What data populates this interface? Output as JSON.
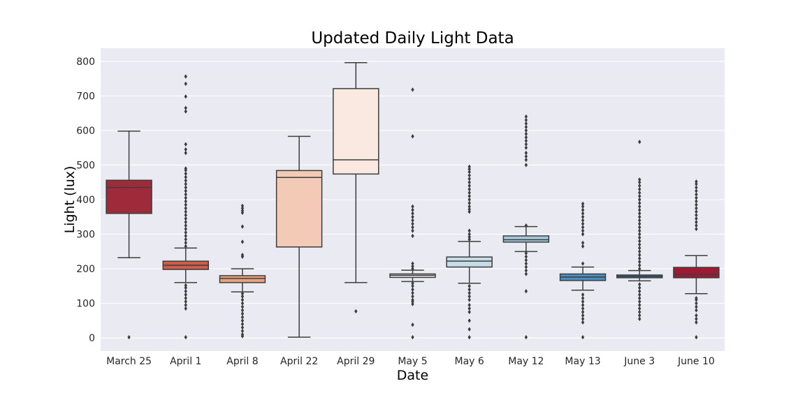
{
  "chart_data": {
    "type": "box",
    "title": "Updated Daily Light Data",
    "xlabel": "Date",
    "ylabel": "Light (lux)",
    "ylim": [
      -38,
      838
    ],
    "yticks": [
      0,
      100,
      200,
      300,
      400,
      500,
      600,
      700,
      800
    ],
    "grid": true,
    "background": "#eaeaf2",
    "line_color": "#3d3d3d",
    "categories": [
      "March 25",
      "April 1",
      "April 8",
      "April 22",
      "April 29",
      "May 5",
      "May 6",
      "May 12",
      "May 13",
      "June 3",
      "June 10"
    ],
    "boxes": [
      {
        "category": "March 25",
        "whisker_low": 232,
        "q1": 360,
        "median": 435,
        "q3": 456,
        "whisker_high": 598,
        "color": "#9e2a3a",
        "outliers": [
          2
        ]
      },
      {
        "category": "April 1",
        "whisker_low": 160,
        "q1": 198,
        "median": 210,
        "q3": 222,
        "whisker_high": 260,
        "color": "#cf5d4b",
        "outliers": [
          2,
          85,
          95,
          105,
          115,
          125,
          135,
          145,
          152,
          265,
          275,
          285,
          295,
          305,
          315,
          325,
          335,
          345,
          355,
          365,
          375,
          385,
          395,
          405,
          415,
          425,
          435,
          445,
          455,
          465,
          475,
          485,
          490,
          535,
          545,
          560,
          655,
          665,
          698,
          735,
          756
        ]
      },
      {
        "category": "April 8",
        "whisker_low": 133,
        "q1": 160,
        "median": 172,
        "q3": 180,
        "whisker_high": 200,
        "color": "#e8a37e",
        "outliers": [
          5,
          10,
          20,
          30,
          40,
          50,
          60,
          70,
          80,
          90,
          100,
          110,
          120,
          128,
          235,
          240,
          278,
          322,
          362,
          368,
          375,
          382
        ]
      },
      {
        "category": "April 22",
        "whisker_low": 2,
        "q1": 263,
        "median": 464,
        "q3": 484,
        "whisker_high": 583,
        "color": "#f3cab6",
        "outliers": []
      },
      {
        "category": "April 29",
        "whisker_low": 160,
        "q1": 474,
        "median": 515,
        "q3": 721,
        "whisker_high": 796,
        "color": "#fae9e1",
        "outliers": [
          77
        ]
      },
      {
        "category": "May 5",
        "whisker_low": 163,
        "q1": 175,
        "median": 181,
        "q3": 185,
        "whisker_high": 196,
        "color": "#f0f0f0",
        "outliers": [
          2,
          38,
          98,
          105,
          110,
          120,
          130,
          140,
          150,
          158,
          200,
          207,
          215,
          295,
          310,
          320,
          330,
          340,
          350,
          360,
          370,
          380,
          583,
          718
        ]
      },
      {
        "category": "May 6",
        "whisker_low": 158,
        "q1": 205,
        "median": 222,
        "q3": 234,
        "whisker_high": 279,
        "color": "#c5dbe8",
        "outliers": [
          2,
          25,
          50,
          75,
          85,
          95,
          110,
          120,
          130,
          140,
          150,
          285,
          292,
          300,
          310,
          365,
          372,
          380,
          390,
          400,
          410,
          420,
          430,
          440,
          450,
          460,
          470,
          480,
          488,
          495
        ]
      },
      {
        "category": "May 12",
        "whisker_low": 250,
        "q1": 277,
        "median": 284,
        "q3": 295,
        "whisker_high": 322,
        "color": "#a2c8dc",
        "outliers": [
          2,
          135,
          185,
          195,
          205,
          215,
          225,
          235,
          245,
          325,
          500,
          515,
          525,
          535,
          550,
          560,
          570,
          580,
          590,
          600,
          610,
          620,
          630,
          640
        ]
      },
      {
        "category": "May 13",
        "whisker_low": 138,
        "q1": 166,
        "median": 176,
        "q3": 185,
        "whisker_high": 205,
        "color": "#4a8fc1",
        "outliers": [
          2,
          45,
          55,
          65,
          75,
          85,
          95,
          105,
          115,
          125,
          215,
          265,
          275,
          300,
          310,
          320,
          330,
          340,
          350,
          360,
          370,
          380,
          388
        ]
      },
      {
        "category": "June 3",
        "whisker_low": 165,
        "q1": 174,
        "median": 178,
        "q3": 182,
        "whisker_high": 195,
        "color": "#2d73b0",
        "outliers": [
          55,
          65,
          75,
          85,
          95,
          105,
          115,
          125,
          135,
          145,
          155,
          200,
          210,
          220,
          230,
          240,
          250,
          260,
          270,
          280,
          290,
          300,
          310,
          320,
          330,
          340,
          350,
          360,
          370,
          380,
          390,
          400,
          410,
          420,
          430,
          440,
          450,
          458,
          567
        ]
      },
      {
        "category": "June 10",
        "whisker_low": 128,
        "q1": 174,
        "median": 184,
        "q3": 204,
        "whisker_high": 238,
        "color": "#9e1a32",
        "outliers": [
          2,
          45,
          55,
          65,
          80,
          90,
          100,
          110,
          115,
          315,
          325,
          335,
          345,
          355,
          365,
          375,
          385,
          395,
          405,
          415,
          425,
          435,
          445,
          452
        ]
      }
    ]
  }
}
